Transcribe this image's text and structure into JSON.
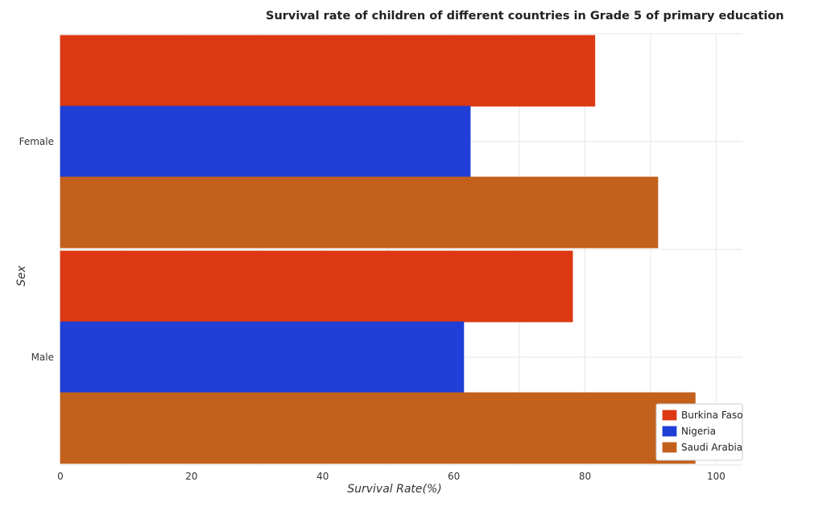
{
  "chart_data": {
    "type": "bar",
    "orientation": "horizontal",
    "title": "Survival rate of children of different countries in Grade 5 of primary education",
    "xlabel": "Survival Rate(%)",
    "ylabel": "Sex",
    "xlim": [
      0,
      104
    ],
    "xticks": [
      0,
      20,
      40,
      60,
      80,
      100
    ],
    "categories": [
      "Female",
      "Male"
    ],
    "series": [
      {
        "name": "Burkina Faso",
        "color": "#dc3912",
        "values": [
          81.5,
          78.1
        ]
      },
      {
        "name": "Nigeria",
        "color": "#1f3fd6",
        "values": [
          62.5,
          61.5
        ]
      },
      {
        "name": "Saudi Arabia",
        "color": "#c2601c",
        "values": [
          91.1,
          96.8
        ]
      }
    ],
    "legend_position": "bottom-right",
    "grid": true
  }
}
